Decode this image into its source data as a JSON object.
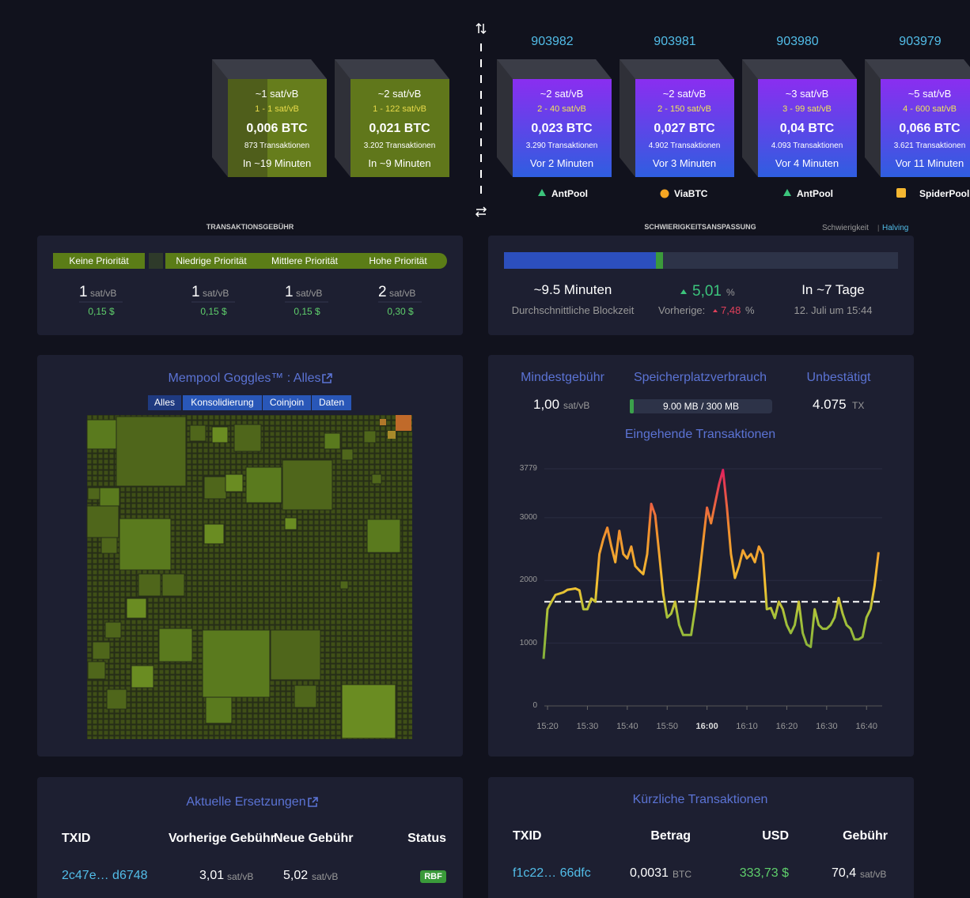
{
  "mempool_blocks": [
    {
      "fee": "~1 sat/vB",
      "fee_range": "1 - 1 sat/vB",
      "btc": "0,006 BTC",
      "tx": "873 Transaktionen",
      "eta": "In ~19 Minuten"
    },
    {
      "fee": "~2 sat/vB",
      "fee_range": "1 - 122 sat/vB",
      "btc": "0,021 BTC",
      "tx": "3.202 Transaktionen",
      "eta": "In ~9 Minuten"
    }
  ],
  "mined_blocks": [
    {
      "height": "903982",
      "fee": "~2 sat/vB",
      "fee_range": "2 - 40 sat/vB",
      "btc": "0,023 BTC",
      "tx": "3.290 Transaktionen",
      "time": "Vor 2 Minuten",
      "pool": "AntPool"
    },
    {
      "height": "903981",
      "fee": "~2 sat/vB",
      "fee_range": "2 - 150 sat/vB",
      "btc": "0,027 BTC",
      "tx": "4.902 Transaktionen",
      "time": "Vor 3 Minuten",
      "pool": "ViaBTC"
    },
    {
      "height": "903980",
      "fee": "~3 sat/vB",
      "fee_range": "3 - 99 sat/vB",
      "btc": "0,04 BTC",
      "tx": "4.093 Transaktionen",
      "time": "Vor 4 Minuten",
      "pool": "AntPool"
    },
    {
      "height": "903979",
      "fee": "~5 sat/vB",
      "fee_range": "4 - 600 sat/vB",
      "btc": "0,066 BTC",
      "tx": "3.621 Transaktionen",
      "time": "Vor 11 Minuten",
      "pool": "SpiderPool"
    }
  ],
  "fees": {
    "title": "TRANSAKTIONSGEBÜHR",
    "priorities": [
      {
        "label": "Keine Priorität",
        "value": "1",
        "unit": "sat/vB",
        "usd": "0,15 $"
      },
      {
        "label": "Niedrige Priorität",
        "value": "1",
        "unit": "sat/vB",
        "usd": "0,15 $"
      },
      {
        "label": "Mittlere Priorität",
        "value": "1",
        "unit": "sat/vB",
        "usd": "0,15 $"
      },
      {
        "label": "Hohe Priorität",
        "value": "2",
        "unit": "sat/vB",
        "usd": "0,30 $"
      }
    ]
  },
  "difficulty": {
    "title": "SCHWIERIGKEITSANSPASSUNG",
    "link_difficulty": "Schwierigkeit",
    "link_separator": "|",
    "link_halving": "Halving",
    "block_time": "~9.5 Minuten",
    "block_time_label": "Durchschnittliche Blockzeit",
    "change": "5,01",
    "change_unit": "%",
    "previous_label": "Vorherige:",
    "previous": "7,48",
    "previous_unit": "%",
    "estimate": "In ~7 Tage",
    "estimate_date": "12. Juli um 15:44"
  },
  "goggles": {
    "title": "Mempool Goggles™ : Alles",
    "tabs": [
      "Alles",
      "Konsolidierung",
      "Coinjoin",
      "Daten"
    ]
  },
  "stats": {
    "min_fee_label": "Mindestgebühr",
    "min_fee": "1,00",
    "min_fee_unit": "sat/vB",
    "memory_label": "Speicherplatzverbrauch",
    "memory": "9.00 MB / 300 MB",
    "unconfirmed_label": "Unbestätigt",
    "unconfirmed": "4.075",
    "unconfirmed_unit": "TX",
    "chart": {
      "type": "line",
      "title": "Eingehende Transaktionen",
      "categories": [
        null,
        "15:20",
        null,
        null,
        null,
        null,
        null,
        null,
        null,
        null,
        null,
        "15:30",
        null,
        null,
        null,
        null,
        null,
        null,
        null,
        null,
        null,
        "15:40",
        null,
        null,
        null,
        null,
        null,
        null,
        null,
        null,
        null,
        "15:50",
        null,
        null,
        null,
        null,
        null,
        null,
        null,
        null,
        null,
        "16:00",
        null,
        null,
        null,
        null,
        null,
        null,
        null,
        null,
        null,
        "16:10",
        null,
        null,
        null,
        null,
        null,
        null,
        null,
        null,
        null,
        "16:20",
        null,
        null,
        null,
        null,
        null,
        null,
        null,
        null,
        null,
        "16:30",
        null,
        null,
        null,
        null,
        null,
        null,
        null,
        null,
        null,
        "16:40",
        null,
        null,
        null
      ],
      "values": [
        750,
        1540,
        1660,
        1770,
        1790,
        1810,
        1850,
        1860,
        1870,
        1840,
        1540,
        1540,
        1710,
        1660,
        2420,
        2660,
        2840,
        2540,
        2290,
        2790,
        2420,
        2350,
        2540,
        2230,
        2160,
        2100,
        2420,
        3220,
        3040,
        2420,
        1790,
        1410,
        1470,
        1660,
        1290,
        1130,
        1130,
        1130,
        1540,
        2040,
        2600,
        3160,
        2910,
        3220,
        3530,
        3760,
        3160,
        2420,
        2040,
        2230,
        2480,
        2350,
        2420,
        2290,
        2540,
        2420,
        1540,
        1560,
        1400,
        1660,
        1540,
        1290,
        1160,
        1290,
        1660,
        1160,
        980,
        940,
        1540,
        1290,
        1230,
        1230,
        1290,
        1410,
        1720,
        1470,
        1290,
        1230,
        1060,
        1060,
        1100,
        1410,
        1540,
        1910,
        2450
      ],
      "reference_line": 1660,
      "ylim": [
        0,
        3779
      ],
      "yticks": [
        0,
        1000,
        2000,
        3000,
        3779
      ],
      "grid": true
    }
  },
  "replacements": {
    "title": "Aktuelle Ersetzungen",
    "headers": [
      "TXID",
      "Vorherige Gebühr",
      "Neue Gebühr",
      "Status"
    ],
    "rows": [
      {
        "txid": "2c47e… d6748",
        "old_fee": "3,01",
        "old_unit": "sat/vB",
        "new_fee": "5,02",
        "new_unit": "sat/vB",
        "status": "RBF"
      }
    ]
  },
  "transactions": {
    "title": "Kürzliche Transaktionen",
    "headers": [
      "TXID",
      "Betrag",
      "USD",
      "Gebühr"
    ],
    "rows": [
      {
        "txid": "f1c22… 66dfc",
        "amount": "0,0031",
        "amount_unit": "BTC",
        "usd": "333,73 $",
        "fee": "70,4",
        "fee_unit": "sat/vB"
      }
    ]
  }
}
